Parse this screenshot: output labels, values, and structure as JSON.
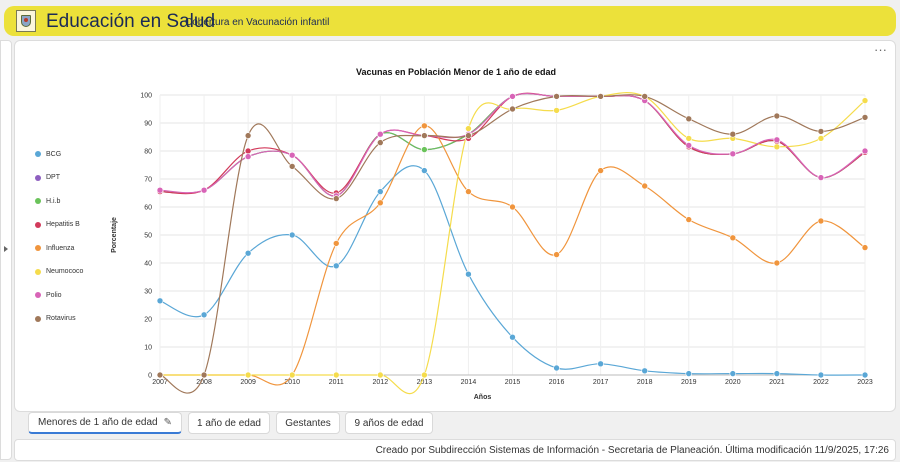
{
  "header": {
    "title": "Educación en Salud",
    "subtitle": "Cobertura en Vacunación infantil"
  },
  "panel": {
    "more_label": "···"
  },
  "tabs": [
    {
      "label": "Menores de 1 año de edad",
      "active": true
    },
    {
      "label": "1 año de edad",
      "active": false
    },
    {
      "label": "Gestantes",
      "active": false
    },
    {
      "label": "9 años de edad",
      "active": false
    }
  ],
  "footer": {
    "text": "Creado por Subdirección Sistemas de Información - Secretaria de Planeación. Última modificación 11/9/2025, 17:26"
  },
  "chart_data": {
    "type": "line",
    "title": "Vacunas en Población Menor de 1 año de edad",
    "xlabel": "Años",
    "ylabel": "Porcentaje",
    "ylim": [
      0,
      100
    ],
    "yticks": [
      0,
      10,
      20,
      30,
      40,
      50,
      60,
      70,
      80,
      90,
      100
    ],
    "grid": true,
    "legend_position": "left",
    "x": [
      2007,
      2008,
      2009,
      2010,
      2011,
      2012,
      2013,
      2014,
      2015,
      2016,
      2017,
      2018,
      2019,
      2020,
      2021,
      2022,
      2023
    ],
    "series": [
      {
        "name": "BCG",
        "color": "#5aa7d6",
        "values": [
          26.5,
          21.5,
          43.5,
          50,
          39,
          65.5,
          73,
          36,
          13.5,
          2.5,
          4,
          1.5,
          0.5,
          0.5,
          0.5,
          0,
          0
        ]
      },
      {
        "name": "DPT",
        "color": "#8e5fc0",
        "values": [
          65.5,
          66,
          78,
          78.5,
          64,
          86,
          80.5,
          86,
          99.5,
          99.5,
          99.5,
          98,
          81.5,
          79,
          83.5,
          70.5,
          79.5
        ]
      },
      {
        "name": "H.i.b",
        "color": "#6ac35a",
        "values": [
          65.5,
          66,
          78,
          78.5,
          64,
          86,
          80.5,
          86,
          99.5,
          99.5,
          99.5,
          98,
          81.5,
          79,
          83.5,
          70.5,
          79.5
        ]
      },
      {
        "name": "Hepatitis B",
        "color": "#d23a5b",
        "values": [
          65.5,
          66,
          80,
          78.5,
          65,
          86,
          85.5,
          84.5,
          99.5,
          99.5,
          99.5,
          98,
          81.5,
          79,
          83.5,
          70.5,
          79.5
        ]
      },
      {
        "name": "Influenza",
        "color": "#f0953d",
        "values": [
          0,
          0,
          0,
          0,
          47,
          61.5,
          89,
          65.5,
          60,
          43,
          73,
          67.5,
          55.5,
          49,
          40,
          55,
          45.5
        ]
      },
      {
        "name": "Neumococo",
        "color": "#f5dc4c",
        "values": [
          0,
          0,
          0,
          0,
          0,
          0,
          0,
          88,
          95,
          94.5,
          99.5,
          99.5,
          84.5,
          84.5,
          81.5,
          84.5,
          98
        ]
      },
      {
        "name": "Polio",
        "color": "#d864b7",
        "values": [
          66,
          66,
          78,
          78.5,
          64,
          86,
          85.5,
          86,
          99.5,
          99.5,
          99.5,
          98,
          82,
          79,
          84,
          70.5,
          80
        ]
      },
      {
        "name": "Rotavirus",
        "color": "#a0785a",
        "values": [
          0,
          0,
          85.5,
          74.5,
          63,
          83,
          85.5,
          85.5,
          95,
          99.5,
          99.5,
          99.5,
          91.5,
          86,
          92.5,
          87,
          92
        ]
      }
    ]
  }
}
